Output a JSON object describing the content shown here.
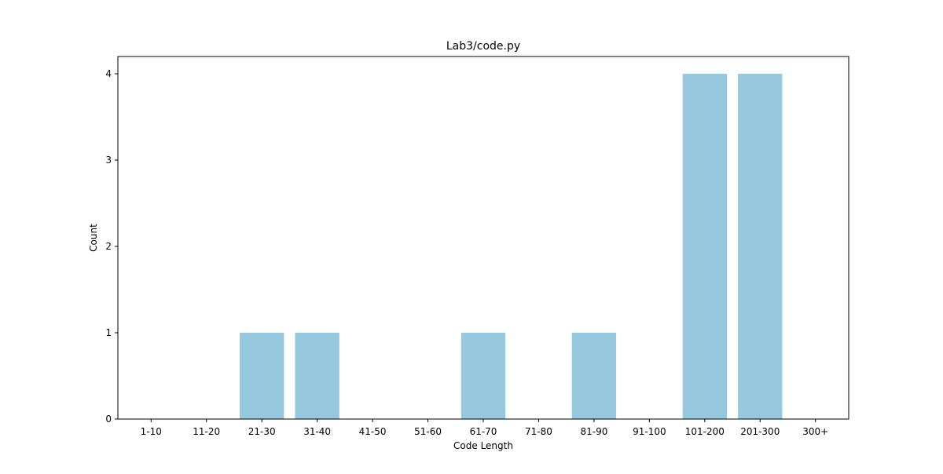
{
  "chart_data": {
    "type": "bar",
    "title": "Lab3/code.py",
    "xlabel": "Code Length",
    "ylabel": "Count",
    "categories": [
      "1-10",
      "11-20",
      "21-30",
      "31-40",
      "41-50",
      "51-60",
      "61-70",
      "71-80",
      "81-90",
      "91-100",
      "101-200",
      "201-300",
      "300+"
    ],
    "values": [
      0,
      0,
      1,
      1,
      0,
      0,
      1,
      0,
      1,
      0,
      4,
      4,
      0
    ],
    "ylim": [
      0,
      4.2
    ],
    "yticks": [
      0,
      1,
      2,
      3,
      4
    ],
    "grid": false,
    "legend": "none",
    "bar_color": "#96c9dd"
  }
}
